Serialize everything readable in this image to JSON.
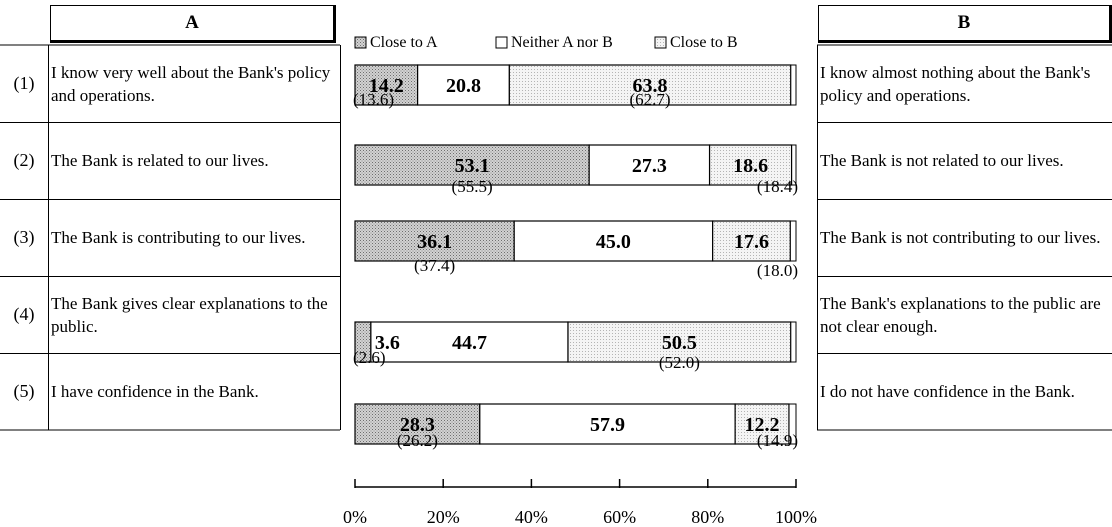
{
  "table": {
    "header_a": "A",
    "header_b": "B",
    "rows": [
      {
        "num": "(1)",
        "a": "I know very well about the Bank's policy and operations.",
        "b": "I know almost nothing about the Bank's policy and operations."
      },
      {
        "num": "(2)",
        "a": "The Bank is related to our lives.",
        "b": "The Bank is not related to our lives."
      },
      {
        "num": "(3)",
        "a": "The Bank is contributing to our lives.",
        "b": "The Bank is not contributing to our lives."
      },
      {
        "num": "(4)",
        "a": "The Bank gives clear explanations to the public.",
        "b": "The Bank's explanations to the public are not clear enough."
      },
      {
        "num": "(5)",
        "a": "I have confidence in the Bank.",
        "b": "I do not have confidence in the Bank."
      }
    ]
  },
  "chart_data": {
    "type": "bar",
    "orientation": "horizontal",
    "stacked": true,
    "categories": [
      "(1)",
      "(2)",
      "(3)",
      "(4)",
      "(5)"
    ],
    "series": [
      {
        "name": "Close to A",
        "values": [
          14.2,
          53.1,
          36.1,
          3.6,
          28.3
        ],
        "previous": [
          "(13.6)",
          "(55.5)",
          "(37.4)",
          "(2.6)",
          "(26.2)"
        ],
        "fill": "#a8a8a8"
      },
      {
        "name": "Neither A nor B",
        "values": [
          20.8,
          27.3,
          45.0,
          44.7,
          57.9
        ],
        "previous": [
          null,
          null,
          null,
          null,
          null
        ],
        "fill": "#ffffff"
      },
      {
        "name": "Close to B",
        "values": [
          63.8,
          18.6,
          17.6,
          50.5,
          12.2
        ],
        "previous": [
          "(62.7)",
          "(18.4)",
          "(18.0)",
          "(52.0)",
          "(14.9)"
        ],
        "fill": "#e4e4e4"
      }
    ],
    "labels": [
      [
        "14.2",
        "53.1",
        "36.1",
        "3.6",
        "28.3"
      ],
      [
        "20.8",
        "27.3",
        "45.0",
        "44.7",
        "57.9"
      ],
      [
        "63.8",
        "18.6",
        "17.6",
        "50.5",
        "12.2"
      ]
    ],
    "xlim": [
      0,
      100
    ],
    "x_ticks": [
      "0%",
      "20%",
      "40%",
      "60%",
      "80%",
      "100%"
    ],
    "legend_position": "top",
    "grid": false
  }
}
